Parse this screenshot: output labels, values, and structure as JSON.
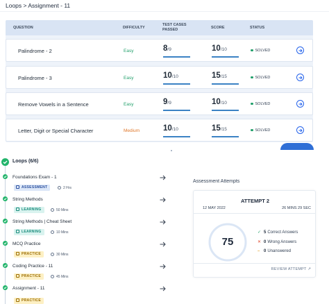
{
  "breadcrumb": "Loops > Assignment - 11",
  "table": {
    "headers": {
      "question": "QUESTION",
      "difficulty": "DIFFICULTY",
      "cases_line1": "TEST CASES",
      "cases_line2": "PASSED",
      "score": "SCORE",
      "status": "STATUS"
    },
    "rows": [
      {
        "name": "Palindrome - 2",
        "difficulty": "Easy",
        "cases": "8",
        "cases_total": "/9",
        "score": "10",
        "score_total": "/10",
        "status": "SOLVED"
      },
      {
        "name": "Palindrome - 3",
        "difficulty": "Easy",
        "cases": "10",
        "cases_total": "/10",
        "score": "15",
        "score_total": "/15",
        "status": "SOLVED"
      },
      {
        "name": "Remove Vowels in a Sentence",
        "difficulty": "Easy",
        "cases": "9",
        "cases_total": "/9",
        "score": "10",
        "score_total": "/10",
        "status": "SOLVED"
      },
      {
        "name": "Letter, Digit or Special Character",
        "difficulty": "Medium",
        "cases": "10",
        "cases_total": "/10",
        "score": "15",
        "score_total": "/15",
        "status": "SOLVED"
      }
    ]
  },
  "outline": {
    "title": "Loops (6/6)",
    "items": [
      {
        "title": "Foundations Exam - 1",
        "tag": "ASSESSMENT",
        "duration": "2 Hrs"
      },
      {
        "title": "String Methods",
        "tag": "LEARNING",
        "duration": "50 Mins"
      },
      {
        "title": "String Methods | Cheat Sheet",
        "tag": "LEARNING",
        "duration": "10 Mins"
      },
      {
        "title": "MCQ Practice",
        "tag": "PRACTICE",
        "duration": "30 Mins"
      },
      {
        "title": "Coding Practice - 11",
        "tag": "PRACTICE",
        "duration": "45 Mins"
      },
      {
        "title": "Assignment - 11",
        "tag": "PRACTICE",
        "duration": ""
      }
    ]
  },
  "attempts": {
    "title": "Assessment Attempts",
    "attempt_name": "ATTEMPT 2",
    "date": "12 MAY 2022",
    "time": "26 MINS 29 SEC",
    "score": "75",
    "correct_count": "5",
    "correct_label": "Correct Answers",
    "wrong_count": "0",
    "wrong_label": "Wrong Answers",
    "unanswered_count": "0",
    "unanswered_label": "Unanswered",
    "review_label": "REVIEW ATTEMPT"
  },
  "colors": {
    "easy": "#22a06b",
    "medium": "#e0782b",
    "accent": "#2563eb",
    "solved": "#22a06b"
  }
}
